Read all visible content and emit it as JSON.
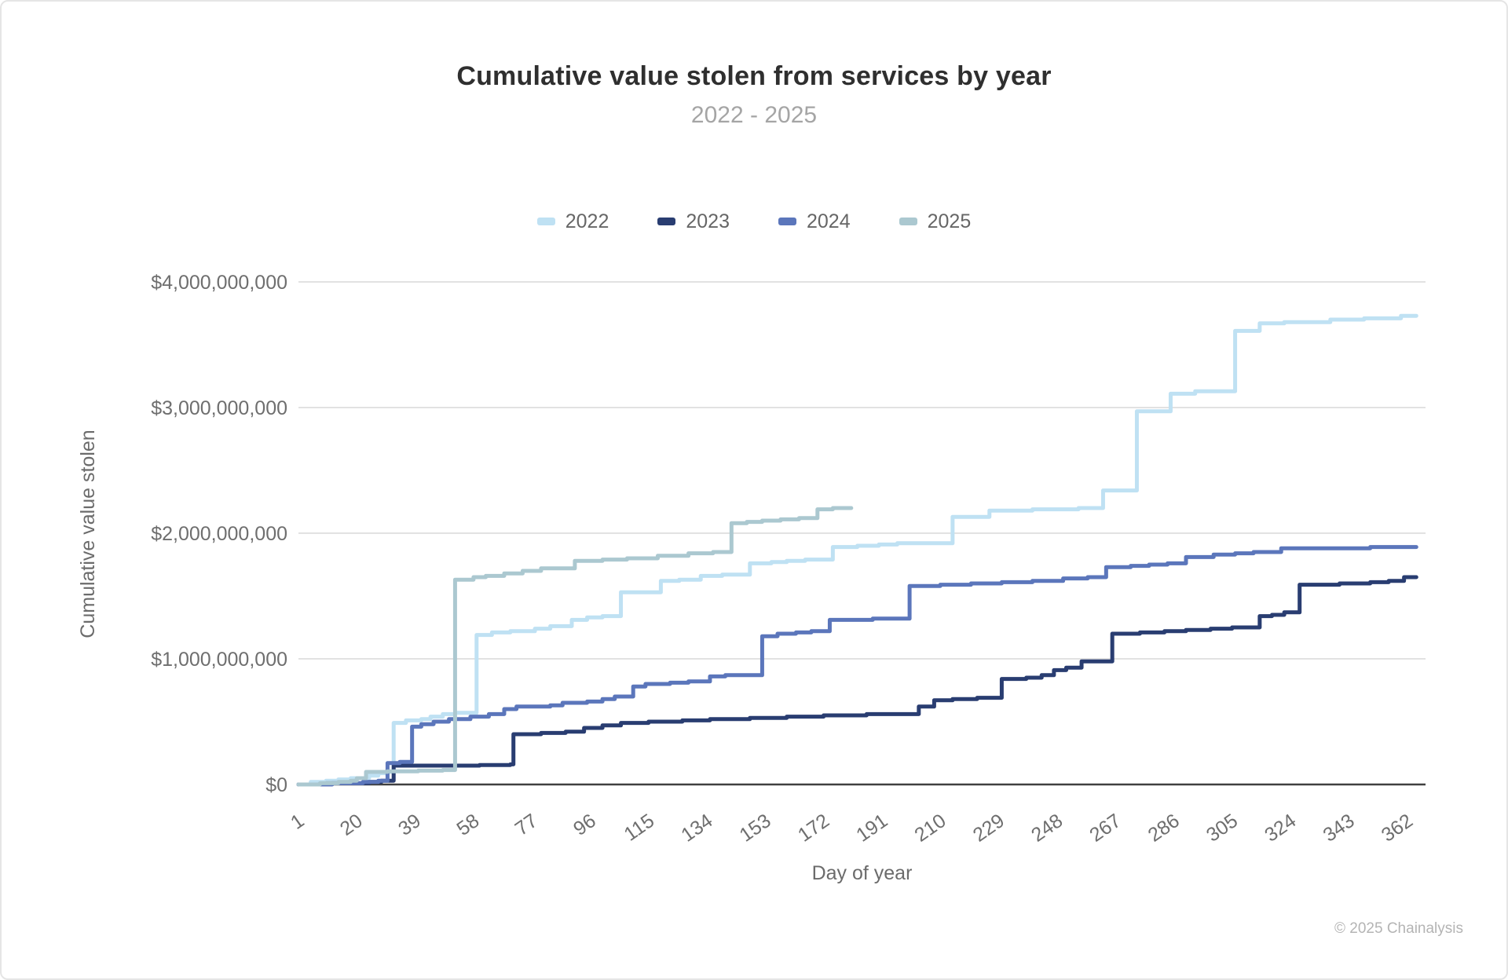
{
  "header": {
    "title": "Cumulative value stolen from services by year",
    "subtitle": "2022 - 2025"
  },
  "footer": {
    "copyright": "© 2025 Chainalysis"
  },
  "chart_data": {
    "type": "line",
    "stepped": true,
    "title": "Cumulative value stolen from services by year",
    "subtitle": "2022 - 2025",
    "xlabel": "Day of year",
    "ylabel": "Cumulative value stolen",
    "legend_position": "top",
    "grid": true,
    "xlim": [
      1,
      368
    ],
    "ylim_usd": [
      0,
      4000000000
    ],
    "x_ticks": [
      1,
      20,
      39,
      58,
      77,
      96,
      115,
      134,
      153,
      172,
      191,
      210,
      229,
      248,
      267,
      286,
      305,
      324,
      343,
      362
    ],
    "y_ticks": [
      {
        "value_billions": 0,
        "label": "$0"
      },
      {
        "value_billions": 1,
        "label": "$1,000,000,000"
      },
      {
        "value_billions": 2,
        "label": "$2,000,000,000"
      },
      {
        "value_billions": 3,
        "label": "$3,000,000,000"
      },
      {
        "value_billions": 4,
        "label": "$4,000,000,000"
      }
    ],
    "value_unit": "USD billions",
    "series": [
      {
        "name": "2022",
        "color": "#bfe1f3",
        "points": [
          [
            1,
            0
          ],
          [
            5,
            0.02
          ],
          [
            10,
            0.03
          ],
          [
            14,
            0.04
          ],
          [
            18,
            0.05
          ],
          [
            24,
            0.07
          ],
          [
            27,
            0.09
          ],
          [
            30,
            0.1
          ],
          [
            32,
            0.49
          ],
          [
            36,
            0.51
          ],
          [
            41,
            0.52
          ],
          [
            44,
            0.54
          ],
          [
            48,
            0.56
          ],
          [
            52,
            0.57
          ],
          [
            59,
            1.19
          ],
          [
            64,
            1.21
          ],
          [
            70,
            1.22
          ],
          [
            78,
            1.24
          ],
          [
            83,
            1.26
          ],
          [
            90,
            1.31
          ],
          [
            95,
            1.33
          ],
          [
            100,
            1.34
          ],
          [
            106,
            1.53
          ],
          [
            119,
            1.62
          ],
          [
            125,
            1.63
          ],
          [
            132,
            1.66
          ],
          [
            139,
            1.67
          ],
          [
            148,
            1.76
          ],
          [
            155,
            1.77
          ],
          [
            160,
            1.78
          ],
          [
            166,
            1.79
          ],
          [
            175,
            1.89
          ],
          [
            183,
            1.9
          ],
          [
            190,
            1.91
          ],
          [
            196,
            1.92
          ],
          [
            214,
            2.13
          ],
          [
            226,
            2.18
          ],
          [
            240,
            2.19
          ],
          [
            255,
            2.2
          ],
          [
            263,
            2.34
          ],
          [
            274,
            2.97
          ],
          [
            285,
            3.11
          ],
          [
            293,
            3.13
          ],
          [
            306,
            3.61
          ],
          [
            314,
            3.67
          ],
          [
            322,
            3.68
          ],
          [
            337,
            3.7
          ],
          [
            348,
            3.71
          ],
          [
            360,
            3.73
          ],
          [
            365,
            3.73
          ]
        ]
      },
      {
        "name": "2023",
        "color": "#293d71",
        "points": [
          [
            1,
            0
          ],
          [
            10,
            0.01
          ],
          [
            20,
            0.01
          ],
          [
            24,
            0.02
          ],
          [
            28,
            0.03
          ],
          [
            32,
            0.15
          ],
          [
            50,
            0.15
          ],
          [
            60,
            0.155
          ],
          [
            70,
            0.16
          ],
          [
            71,
            0.4
          ],
          [
            80,
            0.41
          ],
          [
            88,
            0.42
          ],
          [
            94,
            0.45
          ],
          [
            100,
            0.47
          ],
          [
            106,
            0.49
          ],
          [
            115,
            0.5
          ],
          [
            126,
            0.51
          ],
          [
            135,
            0.52
          ],
          [
            148,
            0.53
          ],
          [
            160,
            0.54
          ],
          [
            172,
            0.55
          ],
          [
            186,
            0.56
          ],
          [
            203,
            0.62
          ],
          [
            208,
            0.67
          ],
          [
            214,
            0.68
          ],
          [
            222,
            0.69
          ],
          [
            230,
            0.84
          ],
          [
            238,
            0.85
          ],
          [
            243,
            0.87
          ],
          [
            247,
            0.91
          ],
          [
            251,
            0.93
          ],
          [
            256,
            0.98
          ],
          [
            266,
            1.2
          ],
          [
            275,
            1.21
          ],
          [
            283,
            1.22
          ],
          [
            290,
            1.23
          ],
          [
            298,
            1.24
          ],
          [
            305,
            1.25
          ],
          [
            314,
            1.34
          ],
          [
            318,
            1.35
          ],
          [
            322,
            1.37
          ],
          [
            327,
            1.59
          ],
          [
            340,
            1.6
          ],
          [
            350,
            1.61
          ],
          [
            356,
            1.62
          ],
          [
            361,
            1.65
          ],
          [
            365,
            1.65
          ]
        ]
      },
      {
        "name": "2024",
        "color": "#5b76bb",
        "points": [
          [
            1,
            0
          ],
          [
            12,
            0.01
          ],
          [
            22,
            0.02
          ],
          [
            27,
            0.03
          ],
          [
            30,
            0.17
          ],
          [
            34,
            0.18
          ],
          [
            38,
            0.46
          ],
          [
            41,
            0.48
          ],
          [
            45,
            0.5
          ],
          [
            50,
            0.52
          ],
          [
            57,
            0.54
          ],
          [
            63,
            0.56
          ],
          [
            68,
            0.6
          ],
          [
            72,
            0.62
          ],
          [
            83,
            0.63
          ],
          [
            87,
            0.65
          ],
          [
            95,
            0.66
          ],
          [
            100,
            0.68
          ],
          [
            104,
            0.7
          ],
          [
            110,
            0.78
          ],
          [
            114,
            0.8
          ],
          [
            122,
            0.81
          ],
          [
            128,
            0.82
          ],
          [
            135,
            0.86
          ],
          [
            140,
            0.87
          ],
          [
            152,
            1.18
          ],
          [
            157,
            1.2
          ],
          [
            163,
            1.21
          ],
          [
            168,
            1.22
          ],
          [
            174,
            1.31
          ],
          [
            188,
            1.32
          ],
          [
            200,
            1.58
          ],
          [
            210,
            1.59
          ],
          [
            220,
            1.6
          ],
          [
            230,
            1.61
          ],
          [
            240,
            1.62
          ],
          [
            250,
            1.64
          ],
          [
            258,
            1.65
          ],
          [
            264,
            1.73
          ],
          [
            272,
            1.74
          ],
          [
            278,
            1.75
          ],
          [
            284,
            1.76
          ],
          [
            290,
            1.81
          ],
          [
            299,
            1.83
          ],
          [
            306,
            1.84
          ],
          [
            312,
            1.85
          ],
          [
            321,
            1.88
          ],
          [
            335,
            1.88
          ],
          [
            350,
            1.89
          ],
          [
            365,
            1.89
          ]
        ]
      },
      {
        "name": "2025",
        "color": "#abc8d0",
        "points": [
          [
            1,
            0
          ],
          [
            8,
            0.01
          ],
          [
            14,
            0.02
          ],
          [
            18,
            0.03
          ],
          [
            20,
            0.05
          ],
          [
            23,
            0.1
          ],
          [
            30,
            0.105
          ],
          [
            40,
            0.11
          ],
          [
            48,
            0.115
          ],
          [
            52,
            1.63
          ],
          [
            58,
            1.65
          ],
          [
            62,
            1.66
          ],
          [
            68,
            1.68
          ],
          [
            74,
            1.7
          ],
          [
            80,
            1.72
          ],
          [
            91,
            1.78
          ],
          [
            100,
            1.79
          ],
          [
            108,
            1.8
          ],
          [
            118,
            1.82
          ],
          [
            128,
            1.84
          ],
          [
            136,
            1.85
          ],
          [
            142,
            2.08
          ],
          [
            147,
            2.09
          ],
          [
            152,
            2.1
          ],
          [
            158,
            2.11
          ],
          [
            164,
            2.12
          ],
          [
            170,
            2.19
          ],
          [
            175,
            2.2
          ],
          [
            181,
            2.2
          ]
        ]
      }
    ]
  }
}
